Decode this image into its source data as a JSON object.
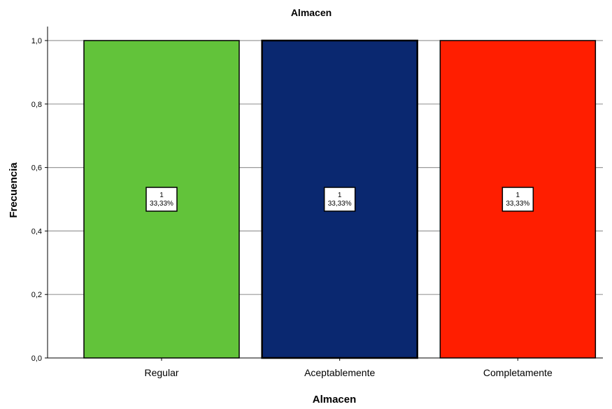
{
  "chart_data": {
    "type": "bar",
    "title": "Almacen",
    "xlabel": "Almacen",
    "ylabel": "Frecuencia",
    "categories": [
      "Regular",
      "Aceptablemente",
      "Completamente"
    ],
    "values": [
      1,
      1,
      1
    ],
    "percent_labels": [
      "33,33%",
      "33,33%",
      "33,33%"
    ],
    "count_labels": [
      "1",
      "1",
      "1"
    ],
    "colors": [
      "#62c33a",
      "#0a2870",
      "#ff1e00"
    ],
    "ylim": [
      0,
      1
    ],
    "yticks": [
      0,
      0.2,
      0.4,
      0.6,
      0.8,
      1
    ],
    "ytick_labels": [
      "0,0",
      "0,2",
      "0,4",
      "0,6",
      "0,8",
      "1,0"
    ],
    "grid": true
  }
}
